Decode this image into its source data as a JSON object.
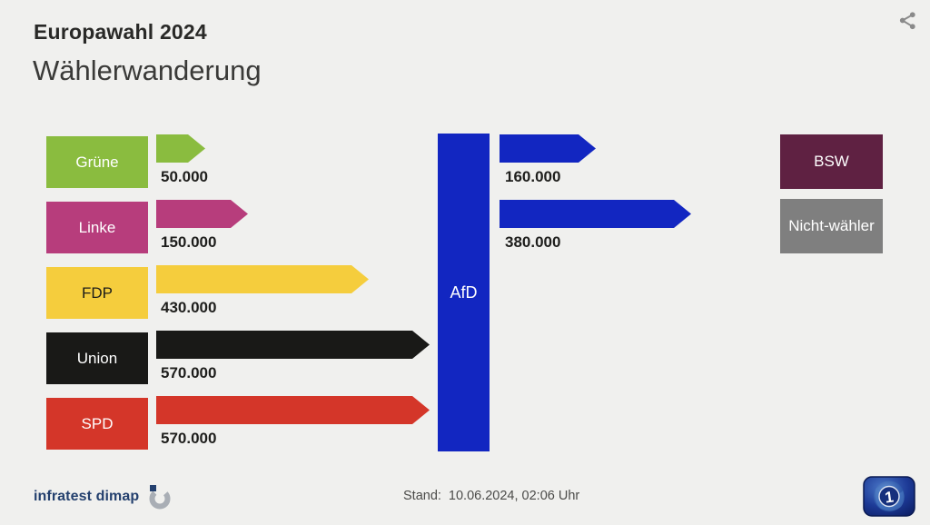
{
  "header": {
    "title": "Europawahl 2024",
    "subtitle": "Wählerwanderung"
  },
  "toolbar": {
    "share_icon": "share-icon"
  },
  "chart_data": {
    "type": "sankey",
    "title": "Wählerwanderung",
    "subtitle_context": "Europawahl 2024",
    "center_node": {
      "label": "AfD",
      "color": "#1226c1",
      "text_color": "#ffffff"
    },
    "flow_color": "#1226c1",
    "inflows": [
      {
        "party": "Grüne",
        "color": "#8abc3f",
        "text_color": "#ffffff",
        "value": 50000,
        "value_label": "50.000"
      },
      {
        "party": "Linke",
        "color": "#b73d7c",
        "text_color": "#ffffff",
        "value": 150000,
        "value_label": "150.000"
      },
      {
        "party": "FDP",
        "color": "#f5cd3d",
        "text_color": "#1c1c1a",
        "value": 430000,
        "value_label": "430.000"
      },
      {
        "party": "Union",
        "color": "#191917",
        "text_color": "#ffffff",
        "value": 570000,
        "value_label": "570.000"
      },
      {
        "party": "SPD",
        "color": "#d43629",
        "text_color": "#ffffff",
        "value": 570000,
        "value_label": "570.000"
      }
    ],
    "outflows": [
      {
        "party": "BSW",
        "label_lines": [
          "BSW"
        ],
        "color": "#5f2142",
        "text_color": "#ffffff",
        "value": 160000,
        "value_label": "160.000"
      },
      {
        "party": "Nichtwähler",
        "label_lines": [
          "Nicht-",
          "wähler"
        ],
        "color": "#7f7f7f",
        "text_color": "#ffffff",
        "value": 380000,
        "value_label": "380.000"
      }
    ]
  },
  "footer": {
    "source": "infratest dimap",
    "stand_label": "Stand:",
    "stand_value": "10.06.2024, 02:06 Uhr",
    "broadcaster_icon": "ard-globe-icon"
  }
}
